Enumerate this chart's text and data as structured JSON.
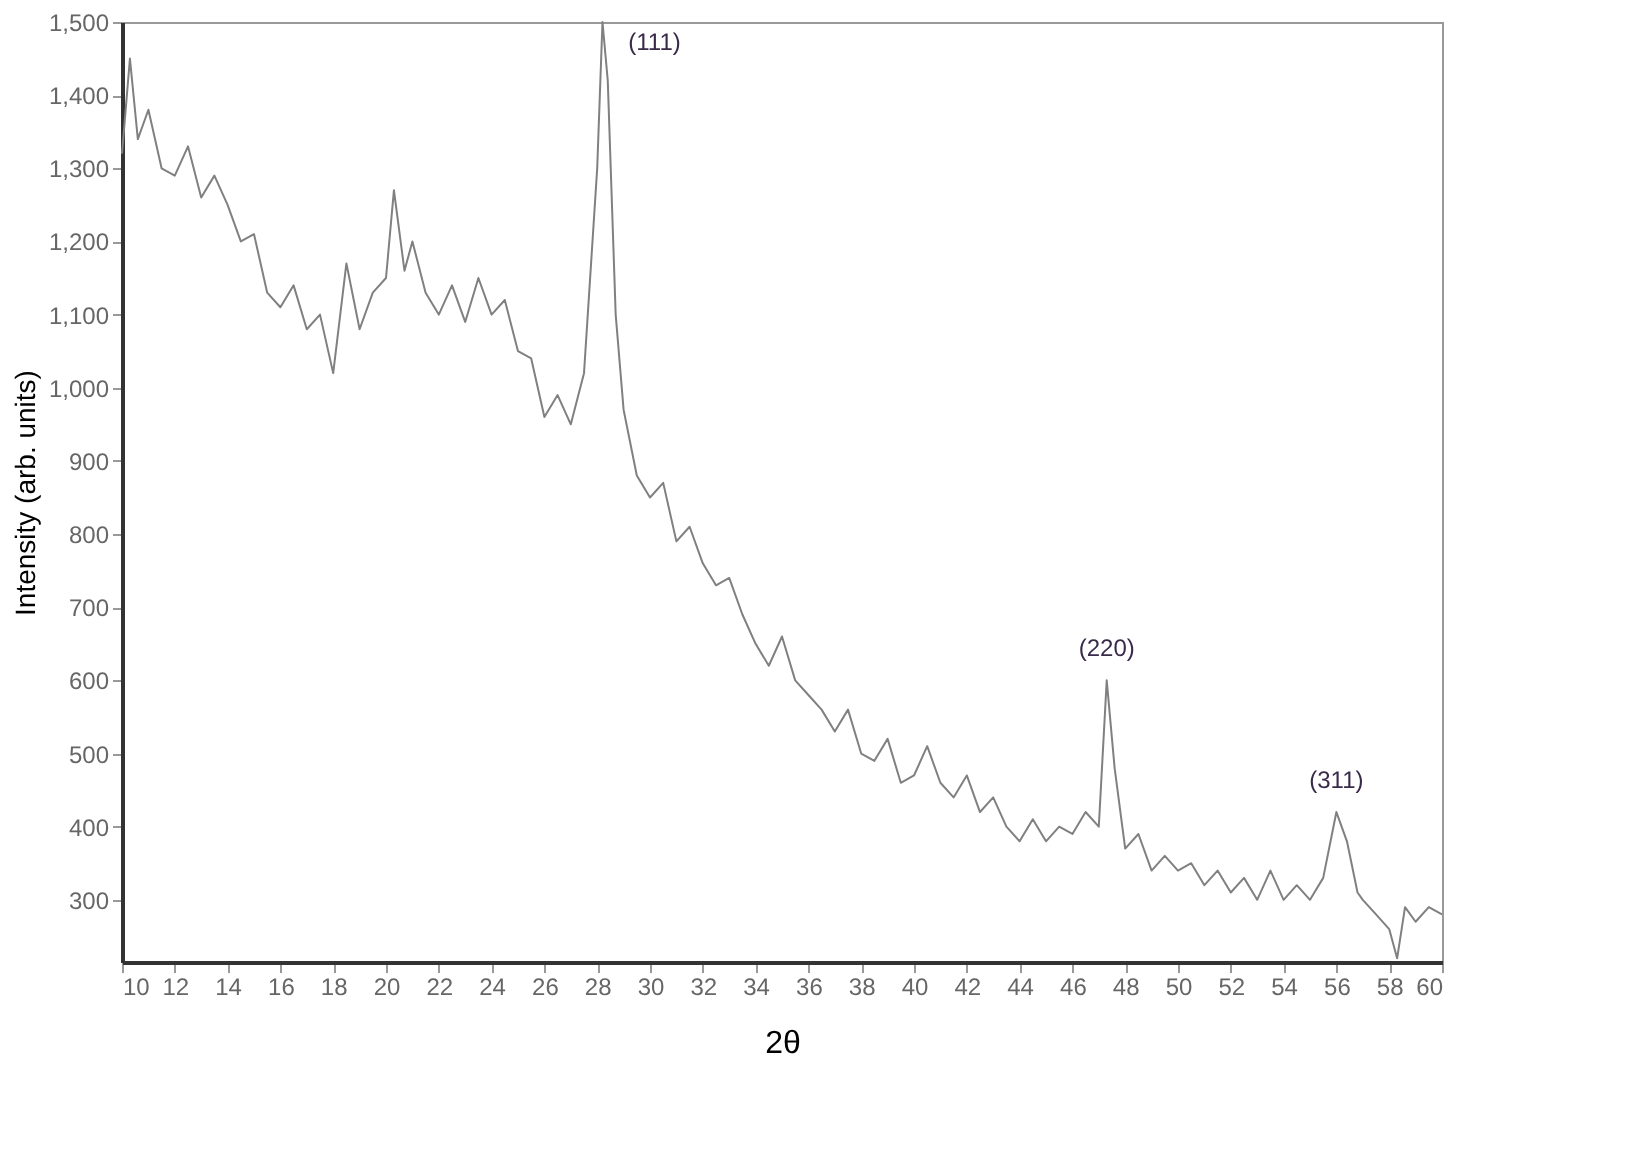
{
  "chart_data": {
    "type": "line",
    "xlabel": "2θ",
    "ylabel": "Intensity (arb. units)",
    "xlim": [
      10,
      60
    ],
    "xticks": [
      10,
      12,
      14,
      16,
      18,
      20,
      22,
      24,
      26,
      28,
      30,
      32,
      34,
      36,
      38,
      40,
      42,
      44,
      46,
      48,
      50,
      52,
      54,
      56,
      58,
      60
    ],
    "ylim": [
      215,
      1500
    ],
    "yticks": [
      300,
      400,
      500,
      600,
      700,
      800,
      900,
      {
        "value": 1000,
        "label": "1,000"
      },
      {
        "value": 1100,
        "label": "1,100"
      },
      {
        "value": 1200,
        "label": "1,200"
      },
      {
        "value": 1300,
        "label": "1,300"
      },
      {
        "value": 1400,
        "label": "1,400"
      },
      {
        "value": 1500,
        "label": "1,500"
      }
    ],
    "grid": false,
    "marker": "none",
    "line_style": "solid",
    "series": [
      {
        "color": "#808080",
        "x": [
          10,
          10.3,
          10.6,
          11,
          11.5,
          12,
          12.5,
          13,
          13.5,
          14,
          14.5,
          15,
          15.5,
          16,
          16.5,
          17,
          17.5,
          18,
          18.5,
          19,
          19.5,
          20,
          20.3,
          20.7,
          21,
          21.5,
          22,
          22.5,
          23,
          23.5,
          24,
          24.5,
          25,
          25.5,
          26,
          26.5,
          27,
          27.5,
          28,
          28.2,
          28.4,
          28.7,
          29,
          29.5,
          30,
          30.5,
          31,
          31.5,
          32,
          32.5,
          33,
          33.5,
          34,
          34.5,
          35,
          35.5,
          36,
          36.5,
          37,
          37.5,
          38,
          38.5,
          39,
          39.5,
          40,
          40.5,
          41,
          41.5,
          42,
          42.5,
          43,
          43.5,
          44,
          44.5,
          45,
          45.5,
          46,
          46.5,
          47,
          47.3,
          47.6,
          48,
          48.5,
          49,
          49.5,
          50,
          50.5,
          51,
          51.5,
          52,
          52.5,
          53,
          53.5,
          54,
          54.5,
          55,
          55.5,
          56,
          56.4,
          56.8,
          57,
          57.5,
          58,
          58.3,
          58.6,
          59,
          59.5,
          60
        ],
        "values": [
          1320,
          1450,
          1340,
          1380,
          1300,
          1290,
          1330,
          1260,
          1290,
          1250,
          1200,
          1210,
          1130,
          1110,
          1140,
          1080,
          1100,
          1020,
          1170,
          1080,
          1130,
          1150,
          1270,
          1160,
          1200,
          1130,
          1100,
          1140,
          1090,
          1150,
          1100,
          1120,
          1050,
          1040,
          960,
          990,
          950,
          1020,
          1300,
          1500,
          1420,
          1100,
          970,
          880,
          850,
          870,
          790,
          810,
          760,
          730,
          740,
          690,
          650,
          620,
          660,
          600,
          580,
          560,
          530,
          560,
          500,
          490,
          520,
          460,
          470,
          510,
          460,
          440,
          470,
          420,
          440,
          400,
          380,
          410,
          380,
          400,
          390,
          420,
          400,
          600,
          480,
          370,
          390,
          340,
          360,
          340,
          350,
          320,
          340,
          310,
          330,
          300,
          340,
          300,
          320,
          300,
          330,
          420,
          380,
          310,
          300,
          280,
          260,
          220,
          290,
          270,
          290,
          280
        ]
      }
    ],
    "annotations": [
      {
        "text": "(111)",
        "x": 28.2,
        "y": 1500
      },
      {
        "text": "(220)",
        "x": 47.3,
        "y": 600
      },
      {
        "text": "(311)",
        "x": 56,
        "y": 420
      }
    ]
  }
}
